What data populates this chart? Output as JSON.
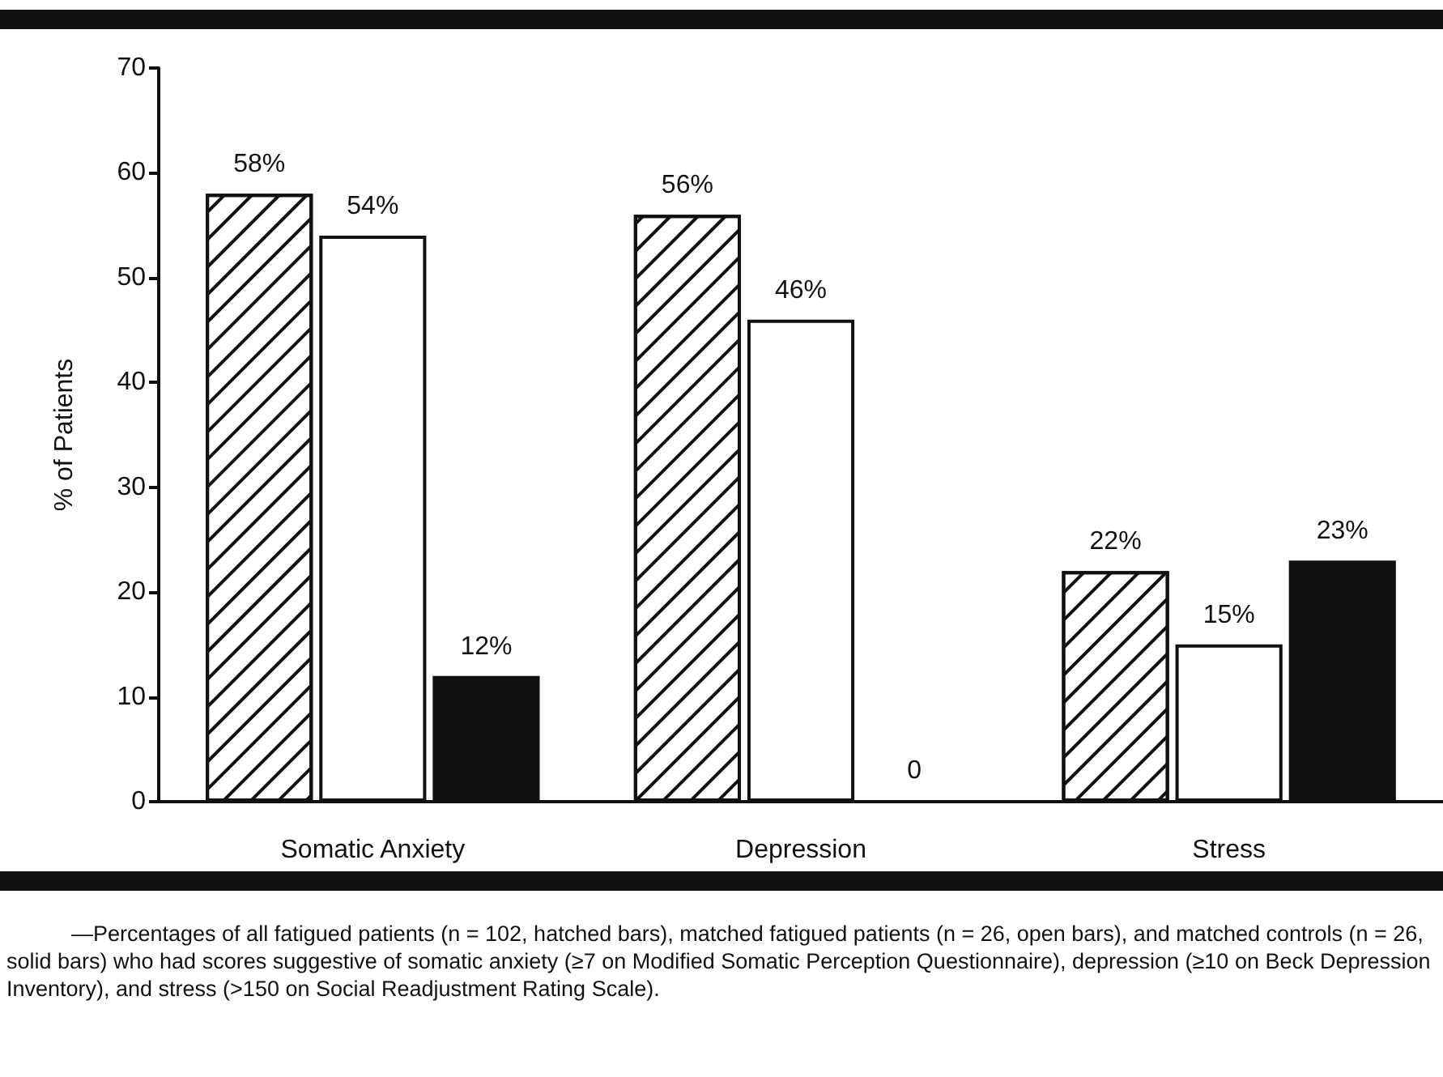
{
  "chart_data": {
    "type": "bar",
    "ylabel": "% of Patients",
    "categories": [
      "Somatic Anxiety",
      "Depression",
      "Stress"
    ],
    "series": [
      {
        "color": "#ffffff",
        "values": [
          58,
          56,
          22
        ],
        "value_labels": [
          "58%",
          "56%",
          "22%"
        ]
      },
      {
        "color": "#ffffff",
        "values": [
          54,
          46,
          15
        ],
        "value_labels": [
          "54%",
          "46%",
          "15%"
        ]
      },
      {
        "color": "#111111",
        "values": [
          12,
          0,
          23
        ],
        "value_labels": [
          "12%",
          "0",
          "23%"
        ]
      }
    ],
    "ylim": [
      0,
      70
    ],
    "yticks": [
      0,
      10,
      20,
      30,
      40,
      50,
      60,
      70
    ],
    "grid": false,
    "annotations": [
      "—Percentages of all fatigued patients (n = 102, hatched bars), matched fatigued patients (n = 26, open bars), and matched controls (n = 26, solid bars) who had scores suggestive of somatic anxiety (≥7 on Modified Somatic Perception Questionnaire), depression (≥10 on Beck Depression Inventory), and stress (>150 on Social Readjustment Rating Scale)."
    ]
  }
}
